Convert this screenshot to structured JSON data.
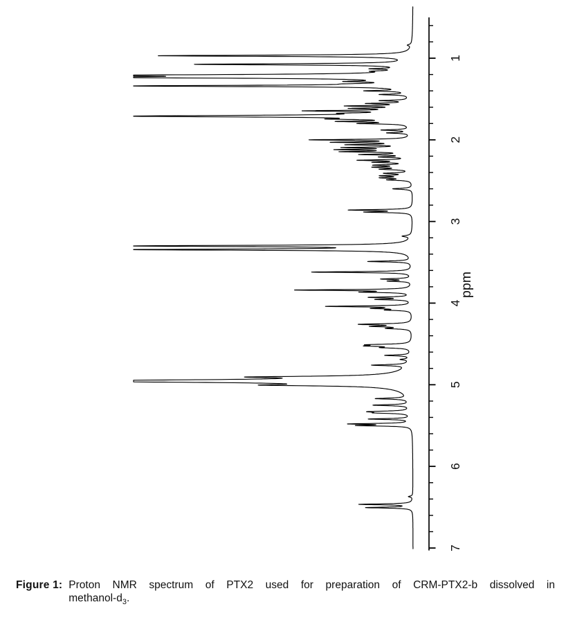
{
  "figure": {
    "caption_label": "Figure 1:",
    "caption_line1": "Proton NMR spectrum of PTX2 used for preparation of CRM-PTX2-b dissolved in",
    "caption_line2_base": "methanol-d",
    "caption_line2_sub": "3",
    "caption_line2_end": "."
  },
  "colors": {
    "background": "#ffffff",
    "trace": "#000000",
    "axis": "#000000",
    "text": "#111111"
  },
  "chart_data": {
    "type": "line",
    "title": "Proton NMR spectrum of PTX2 (rotated: ppm axis vertical on right, intensity grows leftward)",
    "axis": {
      "label": "ppm",
      "min": 0.5,
      "max": 7.03,
      "side": "right",
      "major_ticks": [
        1,
        2,
        3,
        4,
        5,
        6,
        7
      ],
      "minor_tick_step": 0.2,
      "label_rotation_deg": -90
    },
    "baseline_intensity": 0,
    "full_scale_note": "intensity is relative, 0 = baseline, 1 = full-scale (clipped) peak",
    "peak_format": [
      "ppm",
      "relative_intensity",
      "half_width_ppm"
    ],
    "peaks": [
      [
        0.84,
        0.013,
        0.01
      ],
      [
        0.97,
        0.905,
        0.009
      ],
      [
        1.075,
        0.764,
        0.009
      ],
      [
        1.13,
        0.1,
        0.007
      ],
      [
        1.16,
        0.07,
        0.007
      ],
      [
        1.21,
        1.0,
        0.011
      ],
      [
        1.235,
        1.0,
        0.011
      ],
      [
        1.285,
        0.15,
        0.007
      ],
      [
        1.315,
        0.1,
        0.007
      ],
      [
        1.34,
        1.0,
        0.009
      ],
      [
        1.4,
        0.14,
        0.007
      ],
      [
        1.445,
        0.1,
        0.007
      ],
      [
        1.52,
        0.1,
        0.007
      ],
      [
        1.555,
        0.14,
        0.007
      ],
      [
        1.585,
        0.21,
        0.007
      ],
      [
        1.615,
        0.18,
        0.007
      ],
      [
        1.645,
        0.34,
        0.007
      ],
      [
        1.675,
        0.14,
        0.007
      ],
      [
        1.71,
        1.0,
        0.012
      ],
      [
        1.745,
        0.19,
        0.007
      ],
      [
        1.775,
        0.22,
        0.007
      ],
      [
        1.8,
        0.16,
        0.007
      ],
      [
        1.88,
        0.1,
        0.007
      ],
      [
        1.915,
        0.08,
        0.007
      ],
      [
        2.0,
        0.35,
        0.007
      ],
      [
        2.03,
        0.26,
        0.007
      ],
      [
        2.06,
        0.21,
        0.007
      ],
      [
        2.095,
        0.22,
        0.007
      ],
      [
        2.12,
        0.24,
        0.007
      ],
      [
        2.145,
        0.23,
        0.007
      ],
      [
        2.18,
        0.17,
        0.007
      ],
      [
        2.21,
        0.1,
        0.007
      ],
      [
        2.25,
        0.18,
        0.007
      ],
      [
        2.275,
        0.12,
        0.007
      ],
      [
        2.31,
        0.12,
        0.008
      ],
      [
        2.335,
        0.12,
        0.008
      ],
      [
        2.36,
        0.1,
        0.008
      ],
      [
        2.41,
        0.09,
        0.008
      ],
      [
        2.44,
        0.1,
        0.008
      ],
      [
        2.465,
        0.1,
        0.008
      ],
      [
        2.49,
        0.08,
        0.008
      ],
      [
        2.6,
        0.07,
        0.008
      ],
      [
        2.86,
        0.22,
        0.007
      ],
      [
        2.885,
        0.16,
        0.007
      ],
      [
        3.18,
        0.03,
        0.01
      ],
      [
        3.3,
        1.0,
        0.009
      ],
      [
        3.345,
        1.0,
        0.009
      ],
      [
        3.49,
        0.155,
        0.007
      ],
      [
        3.62,
        0.36,
        0.007
      ],
      [
        3.705,
        0.105,
        0.007
      ],
      [
        3.73,
        0.08,
        0.007
      ],
      [
        3.84,
        0.41,
        0.007
      ],
      [
        3.865,
        0.16,
        0.007
      ],
      [
        3.93,
        0.145,
        0.007
      ],
      [
        3.955,
        0.12,
        0.007
      ],
      [
        4.04,
        0.3,
        0.007
      ],
      [
        4.065,
        0.12,
        0.007
      ],
      [
        4.085,
        0.08,
        0.007
      ],
      [
        4.26,
        0.18,
        0.008
      ],
      [
        4.285,
        0.13,
        0.008
      ],
      [
        4.31,
        0.08,
        0.008
      ],
      [
        4.51,
        0.135,
        0.008
      ],
      [
        4.525,
        0.13,
        0.008
      ],
      [
        4.545,
        0.09,
        0.008
      ],
      [
        4.64,
        0.09,
        0.007
      ],
      [
        4.69,
        0.03,
        0.008
      ],
      [
        4.76,
        0.125,
        0.008
      ],
      [
        4.905,
        0.38,
        0.01
      ],
      [
        4.955,
        1.0,
        0.013
      ],
      [
        4.955,
        0.4,
        0.04
      ],
      [
        5.005,
        0.33,
        0.01
      ],
      [
        5.17,
        0.115,
        0.008
      ],
      [
        5.25,
        0.13,
        0.008
      ],
      [
        5.33,
        0.135,
        0.009
      ],
      [
        5.345,
        0.1,
        0.008
      ],
      [
        5.42,
        0.15,
        0.007
      ],
      [
        5.48,
        0.21,
        0.007
      ],
      [
        5.5,
        0.18,
        0.007
      ],
      [
        6.37,
        0.015,
        0.008
      ],
      [
        6.465,
        0.19,
        0.007
      ],
      [
        6.505,
        0.165,
        0.007
      ]
    ]
  }
}
